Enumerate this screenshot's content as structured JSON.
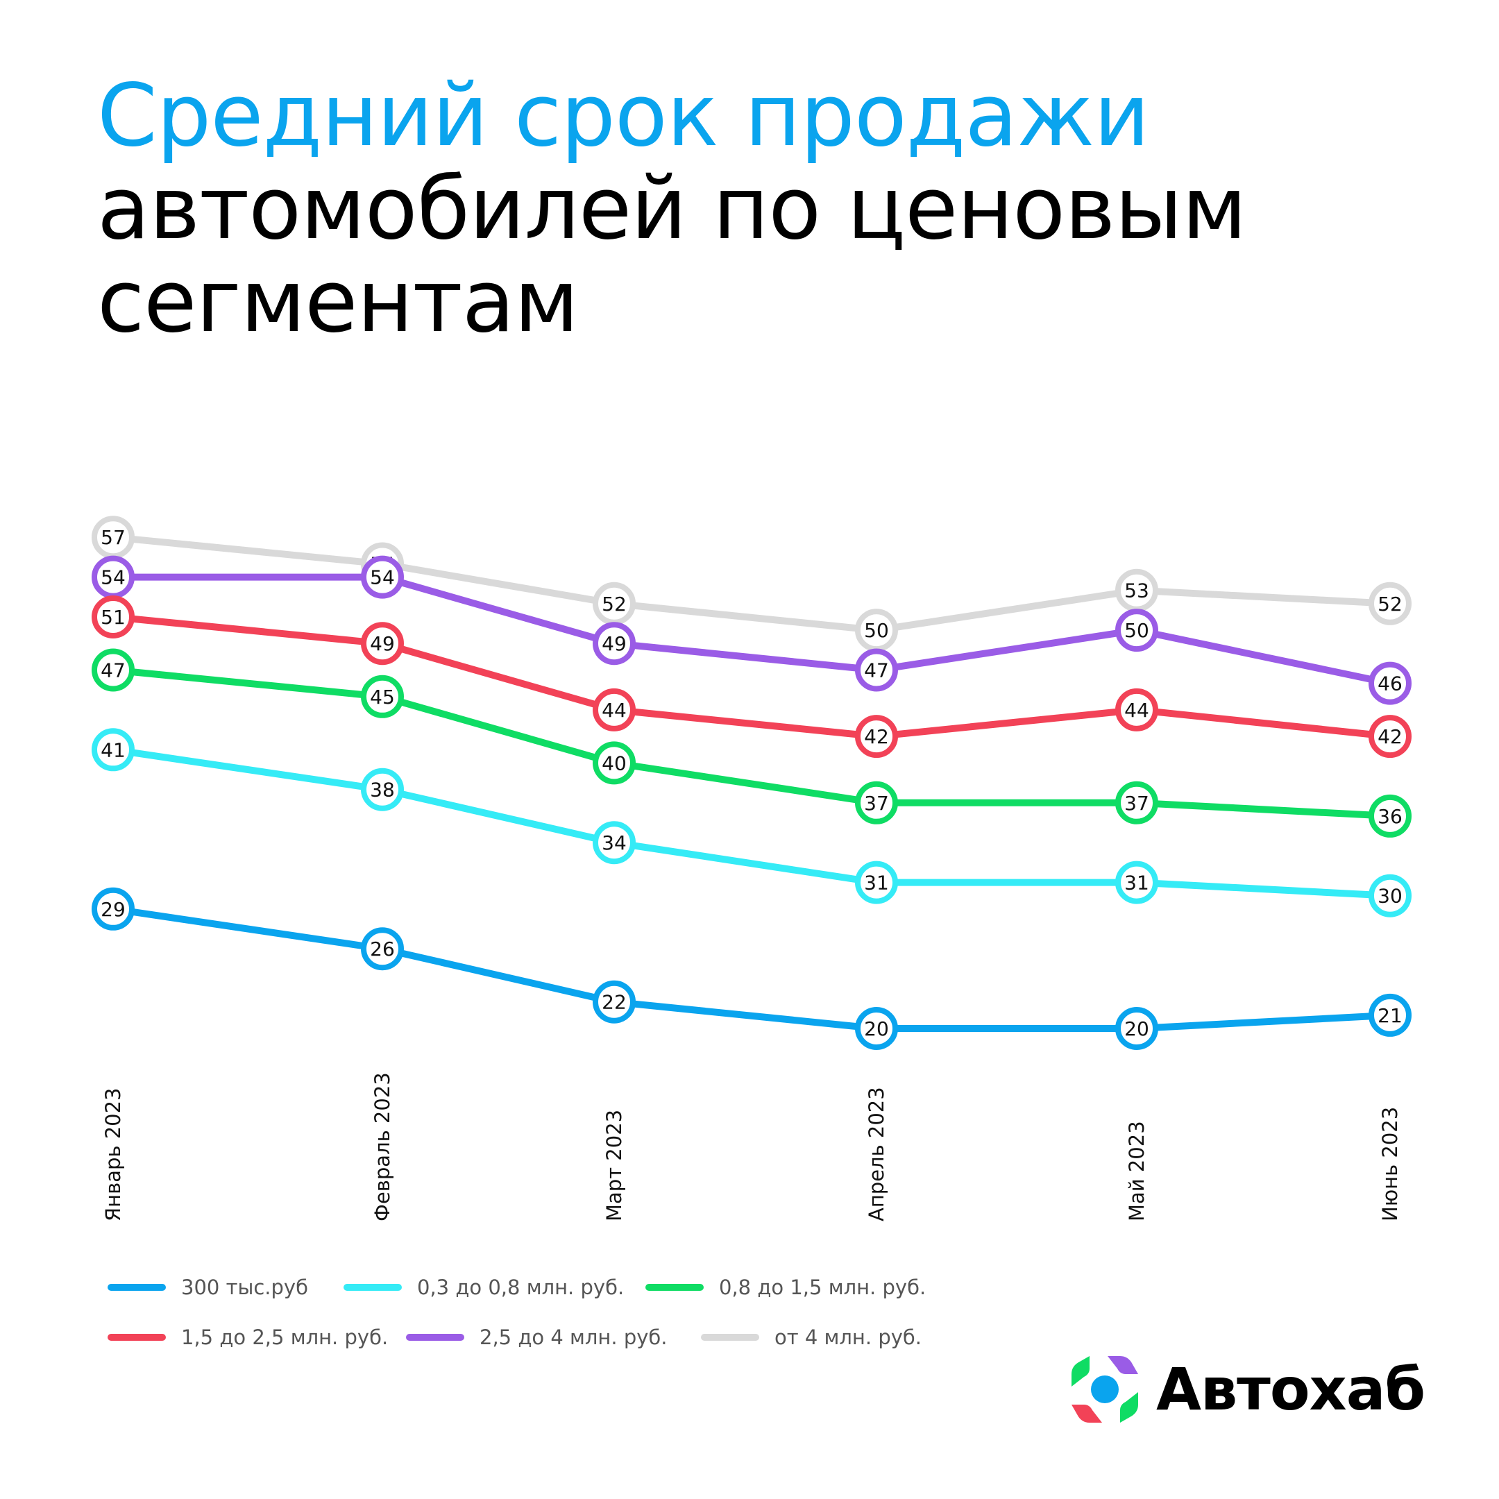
{
  "title": {
    "line1": "Средний срок продажи",
    "line2": "автомобилей  по ценовым",
    "line3": "сегментам"
  },
  "brand": {
    "name": "Автохаб"
  },
  "chart_data": {
    "type": "line",
    "categories": [
      "Январь 2023",
      "Февраль 2023",
      "Март 2023",
      "Апрель 2023",
      "Май 2023",
      "Июнь 2023"
    ],
    "series": [
      {
        "name": "от 4 млн. руб.",
        "color": "#d9d9d9",
        "values": [
          57,
          55,
          52,
          50,
          53,
          52
        ]
      },
      {
        "name": "2,5 до 4 млн. руб.",
        "color": "#9a5ce6",
        "values": [
          54,
          54,
          49,
          47,
          50,
          46
        ]
      },
      {
        "name": "1,5 до 2,5 млн. руб.",
        "color": "#f24257",
        "values": [
          51,
          49,
          44,
          42,
          44,
          42
        ]
      },
      {
        "name": "0,8 до 1,5 млн. руб.",
        "color": "#0fdc64",
        "values": [
          47,
          45,
          40,
          37,
          37,
          36
        ]
      },
      {
        "name": "0,3 до 0,8 млн. руб.",
        "color": "#35ebf6",
        "values": [
          41,
          38,
          34,
          31,
          31,
          30
        ]
      },
      {
        "name": "300 тыс.руб",
        "color": "#0aa4ee",
        "values": [
          29,
          26,
          22,
          20,
          20,
          21
        ]
      }
    ],
    "legend_order": [
      "300 тыс.руб",
      "0,3 до 0,8 млн. руб.",
      "0,8 до 1,5 млн. руб.",
      "1,5 до 2,5 млн. руб.",
      "2,5 до 4 млн. руб.",
      "от 4 млн. руб."
    ],
    "legend_position": "bottom",
    "grid": false
  }
}
